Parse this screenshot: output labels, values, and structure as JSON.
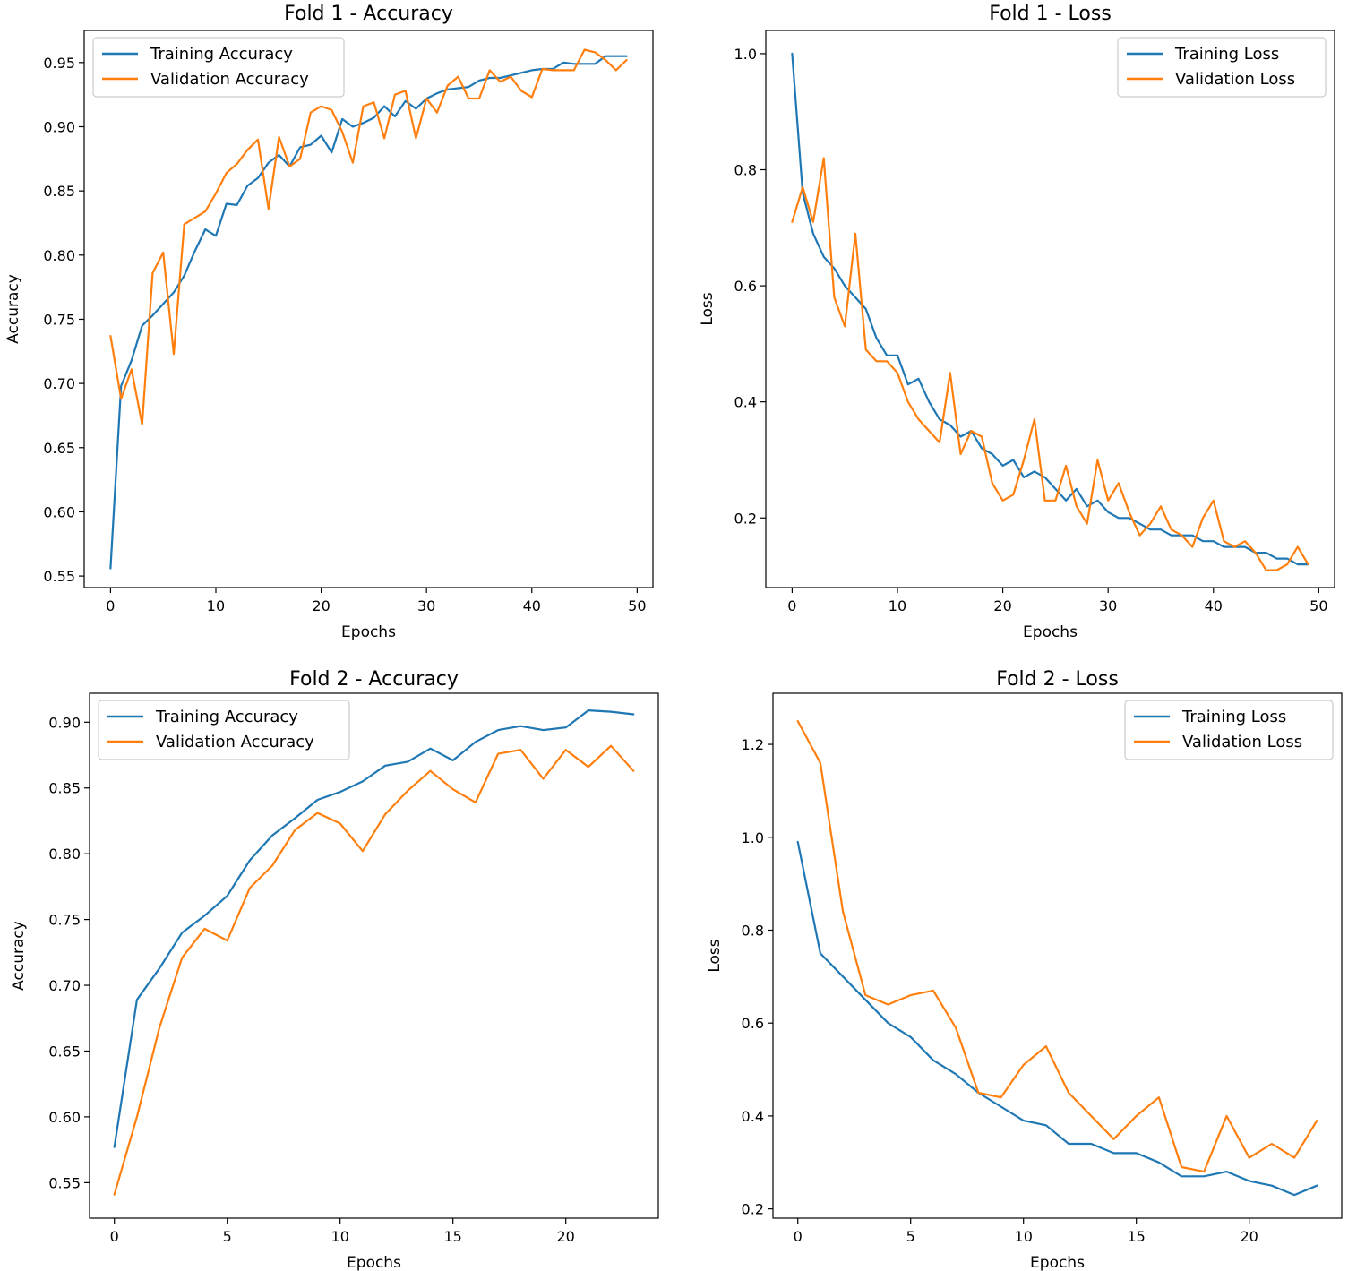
{
  "colors": {
    "training": "#1f77b4",
    "validation": "#ff7f0e",
    "axis": "#000000",
    "legend_border": "#cccccc"
  },
  "chart_data": [
    {
      "id": "fold1-accuracy",
      "type": "line",
      "title": "Fold 1 - Accuracy",
      "xlabel": "Epochs",
      "ylabel": "Accuracy",
      "xlim": [
        -2.5,
        51.5
      ],
      "ylim": [
        0.541,
        0.975
      ],
      "xticks": [
        0,
        10,
        20,
        30,
        40,
        50
      ],
      "xtick_labels": [
        "0",
        "10",
        "20",
        "30",
        "40",
        "50"
      ],
      "yticks": [
        0.55,
        0.6,
        0.65,
        0.7,
        0.75,
        0.8,
        0.85,
        0.9,
        0.95
      ],
      "ytick_labels": [
        "0.55",
        "0.60",
        "0.65",
        "0.70",
        "0.75",
        "0.80",
        "0.85",
        "0.90",
        "0.95"
      ],
      "legend_position": "upper-left",
      "series": [
        {
          "name": "Training Accuracy",
          "color_key": "training",
          "x": [
            0,
            1,
            2,
            3,
            4,
            5,
            6,
            7,
            8,
            9,
            10,
            11,
            12,
            13,
            14,
            15,
            16,
            17,
            18,
            19,
            20,
            21,
            22,
            23,
            24,
            25,
            26,
            27,
            28,
            29,
            30,
            31,
            32,
            33,
            34,
            35,
            36,
            37,
            38,
            39,
            40,
            41,
            42,
            43,
            44,
            45,
            46,
            47,
            48,
            49
          ],
          "values": [
            0.556,
            0.698,
            0.718,
            0.745,
            0.753,
            0.762,
            0.771,
            0.784,
            0.803,
            0.82,
            0.815,
            0.84,
            0.839,
            0.854,
            0.86,
            0.872,
            0.878,
            0.869,
            0.884,
            0.886,
            0.893,
            0.88,
            0.906,
            0.9,
            0.903,
            0.907,
            0.916,
            0.908,
            0.92,
            0.914,
            0.922,
            0.926,
            0.929,
            0.93,
            0.931,
            0.936,
            0.938,
            0.938,
            0.94,
            0.942,
            0.944,
            0.945,
            0.945,
            0.95,
            0.949,
            0.949,
            0.949,
            0.955,
            0.955,
            0.955
          ]
        },
        {
          "name": "Validation Accuracy",
          "color_key": "validation",
          "x": [
            0,
            1,
            2,
            3,
            4,
            5,
            6,
            7,
            8,
            9,
            10,
            11,
            12,
            13,
            14,
            15,
            16,
            17,
            18,
            19,
            20,
            21,
            22,
            23,
            24,
            25,
            26,
            27,
            28,
            29,
            30,
            31,
            32,
            33,
            34,
            35,
            36,
            37,
            38,
            39,
            40,
            41,
            42,
            43,
            44,
            45,
            46,
            47,
            48,
            49
          ],
          "values": [
            0.737,
            0.688,
            0.711,
            0.668,
            0.786,
            0.802,
            0.723,
            0.824,
            0.829,
            0.834,
            0.848,
            0.864,
            0.871,
            0.882,
            0.89,
            0.836,
            0.892,
            0.869,
            0.875,
            0.911,
            0.916,
            0.913,
            0.896,
            0.872,
            0.916,
            0.919,
            0.891,
            0.925,
            0.928,
            0.891,
            0.922,
            0.911,
            0.932,
            0.939,
            0.922,
            0.922,
            0.944,
            0.935,
            0.939,
            0.928,
            0.923,
            0.945,
            0.944,
            0.944,
            0.944,
            0.96,
            0.958,
            0.952,
            0.944,
            0.952
          ]
        }
      ]
    },
    {
      "id": "fold1-loss",
      "type": "line",
      "title": "Fold 1 - Loss",
      "xlabel": "Epochs",
      "ylabel": "Loss",
      "xlim": [
        -2.5,
        51.5
      ],
      "ylim": [
        0.08,
        1.04
      ],
      "xticks": [
        0,
        10,
        20,
        30,
        40,
        50
      ],
      "xtick_labels": [
        "0",
        "10",
        "20",
        "30",
        "40",
        "50"
      ],
      "yticks": [
        0.2,
        0.4,
        0.6,
        0.8,
        1.0
      ],
      "ytick_labels": [
        "0.2",
        "0.4",
        "0.6",
        "0.8",
        "1.0"
      ],
      "legend_position": "upper-right",
      "series": [
        {
          "name": "Training Loss",
          "color_key": "training",
          "x": [
            0,
            1,
            2,
            3,
            4,
            5,
            6,
            7,
            8,
            9,
            10,
            11,
            12,
            13,
            14,
            15,
            16,
            17,
            18,
            19,
            20,
            21,
            22,
            23,
            24,
            25,
            26,
            27,
            28,
            29,
            30,
            31,
            32,
            33,
            34,
            35,
            36,
            37,
            38,
            39,
            40,
            41,
            42,
            43,
            44,
            45,
            46,
            47,
            48,
            49
          ],
          "values": [
            1.0,
            0.76,
            0.69,
            0.65,
            0.63,
            0.6,
            0.58,
            0.56,
            0.51,
            0.48,
            0.48,
            0.43,
            0.44,
            0.4,
            0.37,
            0.36,
            0.34,
            0.35,
            0.32,
            0.31,
            0.29,
            0.3,
            0.27,
            0.28,
            0.27,
            0.25,
            0.23,
            0.25,
            0.22,
            0.23,
            0.21,
            0.2,
            0.2,
            0.19,
            0.18,
            0.18,
            0.17,
            0.17,
            0.17,
            0.16,
            0.16,
            0.15,
            0.15,
            0.15,
            0.14,
            0.14,
            0.13,
            0.13,
            0.12,
            0.12
          ]
        },
        {
          "name": "Validation Loss",
          "color_key": "validation",
          "x": [
            0,
            1,
            2,
            3,
            4,
            5,
            6,
            7,
            8,
            9,
            10,
            11,
            12,
            13,
            14,
            15,
            16,
            17,
            18,
            19,
            20,
            21,
            22,
            23,
            24,
            25,
            26,
            27,
            28,
            29,
            30,
            31,
            32,
            33,
            34,
            35,
            36,
            37,
            38,
            39,
            40,
            41,
            42,
            43,
            44,
            45,
            46,
            47,
            48,
            49
          ],
          "values": [
            0.71,
            0.77,
            0.71,
            0.82,
            0.58,
            0.53,
            0.69,
            0.49,
            0.47,
            0.47,
            0.45,
            0.4,
            0.37,
            0.35,
            0.33,
            0.45,
            0.31,
            0.35,
            0.34,
            0.26,
            0.23,
            0.24,
            0.3,
            0.37,
            0.23,
            0.23,
            0.29,
            0.22,
            0.19,
            0.3,
            0.23,
            0.26,
            0.21,
            0.17,
            0.19,
            0.22,
            0.18,
            0.17,
            0.15,
            0.2,
            0.23,
            0.16,
            0.15,
            0.16,
            0.14,
            0.11,
            0.11,
            0.12,
            0.15,
            0.12
          ]
        }
      ]
    },
    {
      "id": "fold2-accuracy",
      "type": "line",
      "title": "Fold 2 - Accuracy",
      "xlabel": "Epochs",
      "ylabel": "Accuracy",
      "xlim": [
        -1.1,
        24.1
      ],
      "ylim": [
        0.523,
        0.922
      ],
      "xticks": [
        0,
        5,
        10,
        15,
        20
      ],
      "xtick_labels": [
        "0",
        "5",
        "10",
        "15",
        "20"
      ],
      "yticks": [
        0.55,
        0.6,
        0.65,
        0.7,
        0.75,
        0.8,
        0.85,
        0.9
      ],
      "ytick_labels": [
        "0.55",
        "0.60",
        "0.65",
        "0.70",
        "0.75",
        "0.80",
        "0.85",
        "0.90"
      ],
      "legend_position": "upper-left",
      "series": [
        {
          "name": "Training Accuracy",
          "color_key": "training",
          "x": [
            0,
            1,
            2,
            3,
            4,
            5,
            6,
            7,
            8,
            9,
            10,
            11,
            12,
            13,
            14,
            15,
            16,
            17,
            18,
            19,
            20,
            21,
            22,
            23
          ],
          "values": [
            0.577,
            0.689,
            0.713,
            0.74,
            0.753,
            0.768,
            0.795,
            0.814,
            0.827,
            0.841,
            0.847,
            0.855,
            0.867,
            0.87,
            0.88,
            0.871,
            0.885,
            0.894,
            0.897,
            0.894,
            0.896,
            0.909,
            0.908,
            0.906
          ]
        },
        {
          "name": "Validation Accuracy",
          "color_key": "validation",
          "x": [
            0,
            1,
            2,
            3,
            4,
            5,
            6,
            7,
            8,
            9,
            10,
            11,
            12,
            13,
            14,
            15,
            16,
            17,
            18,
            19,
            20,
            21,
            22,
            23
          ],
          "values": [
            0.541,
            0.6,
            0.668,
            0.721,
            0.743,
            0.734,
            0.774,
            0.791,
            0.818,
            0.831,
            0.823,
            0.802,
            0.83,
            0.848,
            0.863,
            0.849,
            0.839,
            0.876,
            0.879,
            0.857,
            0.879,
            0.866,
            0.882,
            0.863
          ]
        }
      ]
    },
    {
      "id": "fold2-loss",
      "type": "line",
      "title": "Fold 2 - Loss",
      "xlabel": "Epochs",
      "ylabel": "Loss",
      "xlim": [
        -1.1,
        24.1
      ],
      "ylim": [
        0.18,
        1.31
      ],
      "xticks": [
        0,
        5,
        10,
        15,
        20
      ],
      "xtick_labels": [
        "0",
        "5",
        "10",
        "15",
        "20"
      ],
      "yticks": [
        0.2,
        0.4,
        0.6,
        0.8,
        1.0,
        1.2
      ],
      "ytick_labels": [
        "0.2",
        "0.4",
        "0.6",
        "0.8",
        "1.0",
        "1.2"
      ],
      "legend_position": "upper-right",
      "series": [
        {
          "name": "Training Loss",
          "color_key": "training",
          "x": [
            0,
            1,
            2,
            3,
            4,
            5,
            6,
            7,
            8,
            9,
            10,
            11,
            12,
            13,
            14,
            15,
            16,
            17,
            18,
            19,
            20,
            21,
            22,
            23
          ],
          "values": [
            0.99,
            0.75,
            0.7,
            0.65,
            0.6,
            0.57,
            0.52,
            0.49,
            0.45,
            0.42,
            0.39,
            0.38,
            0.34,
            0.34,
            0.32,
            0.32,
            0.3,
            0.27,
            0.27,
            0.28,
            0.26,
            0.25,
            0.23,
            0.25
          ]
        },
        {
          "name": "Validation Loss",
          "color_key": "validation",
          "x": [
            0,
            1,
            2,
            3,
            4,
            5,
            6,
            7,
            8,
            9,
            10,
            11,
            12,
            13,
            14,
            15,
            16,
            17,
            18,
            19,
            20,
            21,
            22,
            23
          ],
          "values": [
            1.25,
            1.16,
            0.84,
            0.66,
            0.64,
            0.66,
            0.67,
            0.59,
            0.45,
            0.44,
            0.51,
            0.55,
            0.45,
            0.4,
            0.35,
            0.4,
            0.44,
            0.29,
            0.28,
            0.4,
            0.31,
            0.34,
            0.31,
            0.39
          ]
        }
      ]
    }
  ]
}
